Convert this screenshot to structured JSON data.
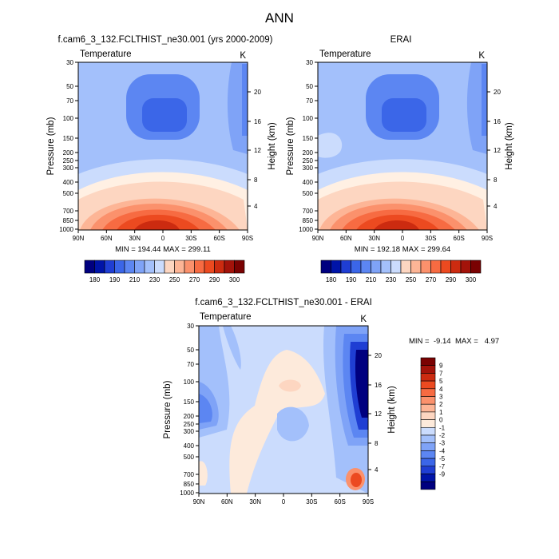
{
  "figure": {
    "title": "ANN"
  },
  "colors": {
    "abs_levels": [
      "#00007f",
      "#0014a8",
      "#1f3ed3",
      "#3b66e8",
      "#5c86f2",
      "#7fa3f7",
      "#a3c0fb",
      "#cbdcfd",
      "#fff0e3",
      "#fdd6c1",
      "#fdb596",
      "#fb916c",
      "#f76b42",
      "#ec4a20",
      "#cc2b10",
      "#a3130a",
      "#7a0202"
    ],
    "diff_levels": [
      "#00007f",
      "#0014a8",
      "#1f3ed3",
      "#3b66e8",
      "#5c86f2",
      "#7fa3f7",
      "#a3c0fb",
      "#cbdcfd",
      "#fdeadb",
      "#fdd6c1",
      "#fdb596",
      "#fb916c",
      "#f76b42",
      "#ec4a20",
      "#cc2b10",
      "#a3130a",
      "#7a0202"
    ]
  },
  "chart_data": [
    {
      "type": "heatmap",
      "title": "f.cam6_3_132.FCLTHIST_ne30.001 (yrs 2000-2009)",
      "variable": "Temperature",
      "units": "K",
      "ylabel": "Pressure (mb)",
      "ylabel_right": "Height (km)",
      "x_ticks": [
        "90N",
        "60N",
        "30N",
        "0",
        "30S",
        "60S",
        "90S"
      ],
      "y_ticks": [
        "30",
        "50",
        "70",
        "100",
        "150",
        "200",
        "250",
        "300",
        "400",
        "500",
        "700",
        "850",
        "1000"
      ],
      "y_ticks_right": [
        "20",
        "16",
        "12",
        "8",
        "4"
      ],
      "stats": "MIN = 194.44  MAX = 299.11",
      "min": 194.44,
      "max": 299.11,
      "colorbar_labels": [
        "180",
        "190",
        "210",
        "230",
        "250",
        "270",
        "290",
        "300"
      ],
      "grid": false
    },
    {
      "type": "heatmap",
      "title": "ERAI",
      "variable": "Temperature",
      "units": "K",
      "ylabel": "Pressure (mb)",
      "ylabel_right": "Height (km)",
      "x_ticks": [
        "90N",
        "60N",
        "30N",
        "0",
        "30S",
        "60S",
        "90S"
      ],
      "y_ticks": [
        "30",
        "50",
        "70",
        "100",
        "150",
        "200",
        "250",
        "300",
        "400",
        "500",
        "700",
        "850",
        "1000"
      ],
      "y_ticks_right": [
        "20",
        "16",
        "12",
        "8",
        "4"
      ],
      "stats": "MIN = 192.18  MAX = 299.64",
      "min": 192.18,
      "max": 299.64,
      "colorbar_labels": [
        "180",
        "190",
        "210",
        "230",
        "250",
        "270",
        "290",
        "300"
      ],
      "grid": false
    },
    {
      "type": "heatmap",
      "title": "f.cam6_3_132.FCLTHIST_ne30.001 - ERAI",
      "variable": "Temperature",
      "units": "K",
      "ylabel": "Pressure (mb)",
      "ylabel_right": "Height (km)",
      "x_ticks": [
        "90N",
        "60N",
        "30N",
        "0",
        "30S",
        "60S",
        "90S"
      ],
      "y_ticks": [
        "30",
        "50",
        "70",
        "100",
        "150",
        "200",
        "250",
        "300",
        "400",
        "500",
        "700",
        "850",
        "1000"
      ],
      "y_ticks_right": [
        "20",
        "16",
        "12",
        "8",
        "4"
      ],
      "stats_min_label": "MIN =  -9.14",
      "stats_max_label": "MAX =   4.97",
      "min": -9.14,
      "max": 4.97,
      "colorbar_labels": [
        "9",
        "7",
        "5",
        "4",
        "3",
        "2",
        "1",
        "0",
        "-1",
        "-2",
        "-3",
        "-4",
        "-5",
        "-7",
        "-9"
      ],
      "grid": false
    }
  ]
}
